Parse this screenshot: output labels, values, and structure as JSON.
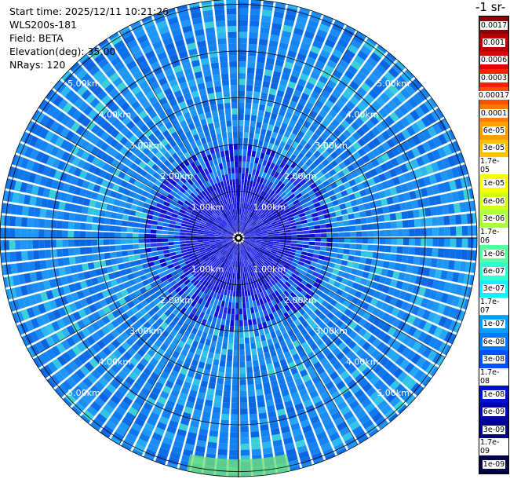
{
  "info": {
    "start_time": "Start time: 2025/12/11 10:21:26",
    "instrument": "WLS200s-181",
    "field": "Field: BETA",
    "elevation": "Elevation(deg): 35.00",
    "nrays": "NRays: 120"
  },
  "colorbar": {
    "title": "-1 sr-",
    "labels": [
      "0.0017",
      "0.001",
      "0.0006",
      "0.0003",
      "0.00017",
      "0.0001",
      "6e-05",
      "3e-05",
      "1.7e-05",
      "1e-05",
      "6e-06",
      "3e-06",
      "1.7e-06",
      "1e-06",
      "6e-07",
      "3e-07",
      "1.7e-07",
      "1e-07",
      "6e-08",
      "3e-08",
      "1.7e-08",
      "1e-08",
      "6e-09",
      "3e-09",
      "1.7e-09",
      "1e-09"
    ],
    "colors": [
      "#8b0000",
      "#b80000",
      "#e00000",
      "#ff2000",
      "#ff5000",
      "#ff7a00",
      "#ff9e00",
      "#ffc000",
      "#ffe000",
      "#f5ff00",
      "#d2ff1a",
      "#aaff40",
      "#80ff70",
      "#58ffa0",
      "#30ffd0",
      "#10f0ff",
      "#00c8ff",
      "#00a0ff",
      "#0078ff",
      "#0050ff",
      "#0028f0",
      "#0010d0",
      "#0000b0",
      "#00008a",
      "#000066",
      "#000040"
    ]
  },
  "range_rings": {
    "labels": [
      "1.00km",
      "2.00km",
      "3.00km",
      "4.00km",
      "5.00km"
    ]
  },
  "chart_data": {
    "type": "ppi",
    "field": "BETA",
    "elevation_deg": 35.0,
    "nrays": 120,
    "range_rings_km": [
      1,
      2,
      3,
      4,
      5
    ],
    "dominant_level": "1e-07",
    "near_range_level": "1e-08"
  }
}
